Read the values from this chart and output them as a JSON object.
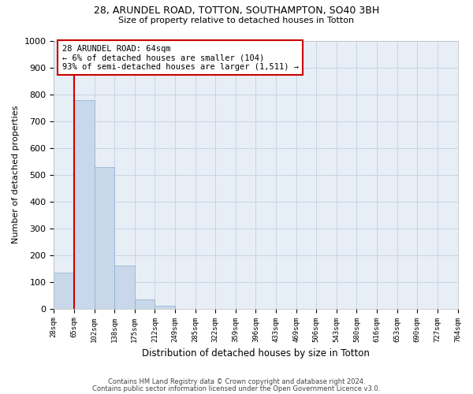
{
  "title1": "28, ARUNDEL ROAD, TOTTON, SOUTHAMPTON, SO40 3BH",
  "title2": "Size of property relative to detached houses in Totton",
  "xlabel": "Distribution of detached houses by size in Totton",
  "ylabel": "Number of detached properties",
  "footer1": "Contains HM Land Registry data © Crown copyright and database right 2024.",
  "footer2": "Contains public sector information licensed under the Open Government Licence v3.0.",
  "bin_labels": [
    "28sqm",
    "65sqm",
    "102sqm",
    "138sqm",
    "175sqm",
    "212sqm",
    "249sqm",
    "285sqm",
    "322sqm",
    "359sqm",
    "396sqm",
    "433sqm",
    "469sqm",
    "506sqm",
    "543sqm",
    "580sqm",
    "616sqm",
    "653sqm",
    "690sqm",
    "727sqm",
    "764sqm"
  ],
  "bar_values": [
    133,
    778,
    527,
    160,
    35,
    10,
    0,
    0,
    0,
    0,
    0,
    0,
    0,
    0,
    0,
    0,
    0,
    0,
    0,
    0
  ],
  "bar_color": "#c8d8ea",
  "bar_edge_color": "#8ab0cc",
  "grid_color": "#c8d4e4",
  "plot_bg_color": "#e8eef6",
  "red_line_x": 1,
  "annotation_text1": "28 ARUNDEL ROAD: 64sqm",
  "annotation_text2": "← 6% of detached houses are smaller (104)",
  "annotation_text3": "93% of semi-detached houses are larger (1,511) →",
  "annotation_box_color": "#cc0000",
  "ylim": [
    0,
    1000
  ],
  "yticks": [
    0,
    100,
    200,
    300,
    400,
    500,
    600,
    700,
    800,
    900,
    1000
  ]
}
